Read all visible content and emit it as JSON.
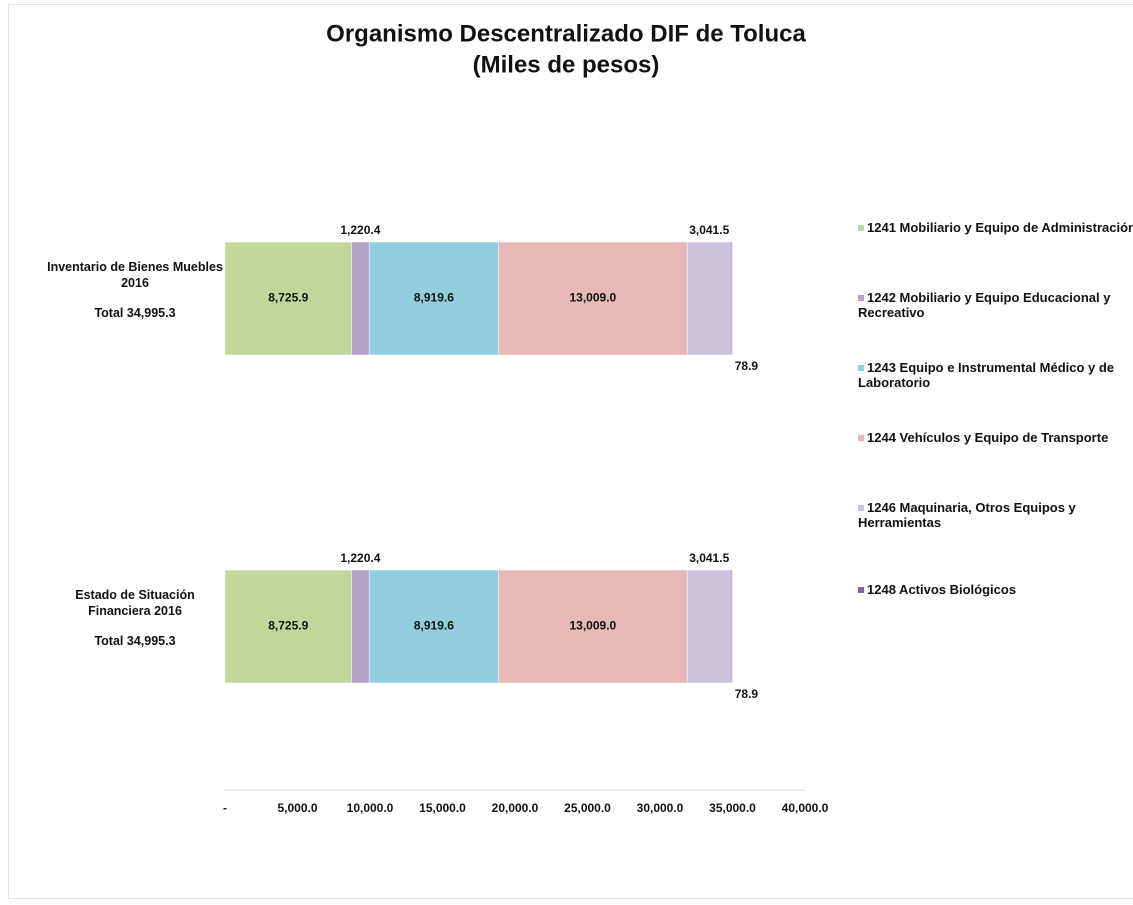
{
  "chart_data": {
    "type": "stacked-barh",
    "title": "Organismo Descentralizado DIF de Toluca",
    "subtitle": "(Miles de pesos)",
    "categories": [
      "Inventario de Bienes Muebles 2016",
      "Estado de Situación Financiera 2016"
    ],
    "category_totals": [
      "Total 34,995.3",
      "Total  34,995.3"
    ],
    "series": [
      {
        "name": "1241 Mobiliario y Equipo de Administración",
        "color": "#c3d69b",
        "values": [
          8725.9,
          8725.9
        ],
        "value_labels": [
          "8,725.9",
          "8,725.9"
        ]
      },
      {
        "name": "1242 Mobiliario y Equipo Educacional y Recreativo",
        "color": "#b3a2c7",
        "values": [
          1220.4,
          1220.4
        ],
        "value_labels": [
          "1,220.4",
          "1,220.4"
        ]
      },
      {
        "name": "1243 Equipo e Instrumental Médico y de Laboratorio",
        "color": "#93cddd",
        "values": [
          8919.6,
          8919.6
        ],
        "value_labels": [
          "8,919.6",
          "8,919.6"
        ]
      },
      {
        "name": "1244 Vehículos y Equipo de Transporte",
        "color": "#e6b9b8",
        "values": [
          13009.0,
          13009.0
        ],
        "value_labels": [
          "13,009.0",
          "13,009.0"
        ]
      },
      {
        "name": "1246 Maquinaria, Otros Equipos y Herramientas",
        "color": "#ccc1da",
        "values": [
          3041.5,
          3041.5
        ],
        "value_labels": [
          "3,041.5",
          "3,041.5"
        ]
      },
      {
        "name": "1248 Activos Biológicos",
        "color": "#8064a2",
        "values": [
          78.9,
          78.9
        ]
      }
    ],
    "xlim": [
      0,
      40000
    ],
    "xticks": [
      {
        "value": 0,
        "label": "-"
      },
      {
        "value": 5000,
        "label": "5,000.0"
      },
      {
        "value": 10000,
        "label": "10,000.0"
      },
      {
        "value": 15000,
        "label": "15,000.0"
      },
      {
        "value": 20000,
        "label": "20,000.0"
      },
      {
        "value": 25000,
        "label": "25,000.0"
      },
      {
        "value": 30000,
        "label": "30,000.0"
      },
      {
        "value": 35000,
        "label": "35,000.0"
      },
      {
        "value": 40000,
        "label": "40,000.0"
      }
    ],
    "grid": false,
    "legend": "right"
  }
}
